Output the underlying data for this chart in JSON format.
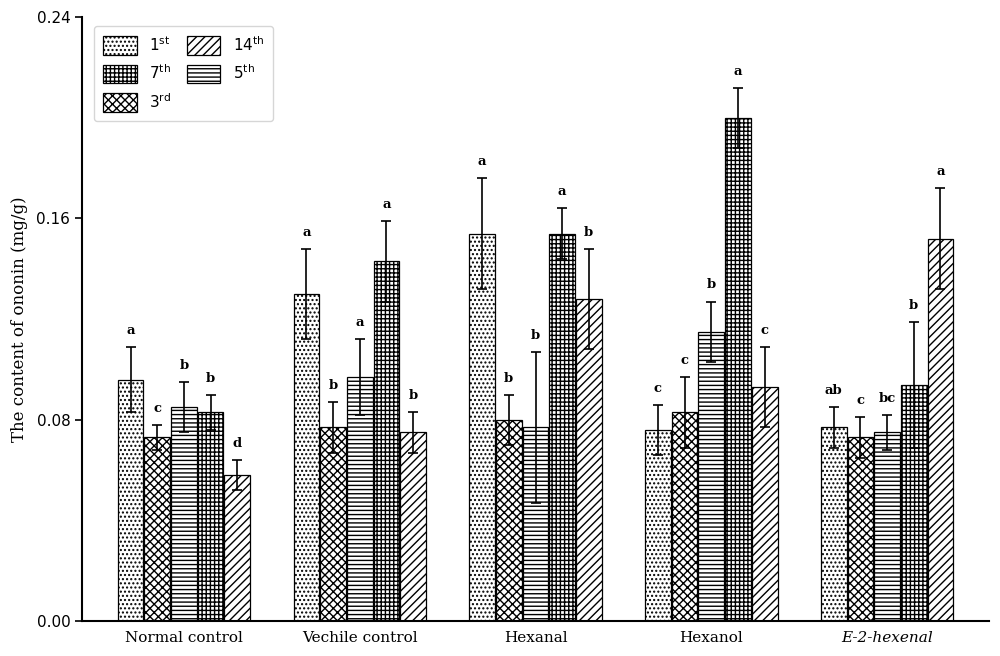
{
  "groups": [
    "Normal control",
    "Vechile control",
    "Hexanal",
    "Hexanol",
    "E-2-hexenal"
  ],
  "series_labels": [
    "1st",
    "3rd",
    "5th",
    "7th",
    "14th"
  ],
  "values": [
    [
      0.096,
      0.073,
      0.085,
      0.083,
      0.058
    ],
    [
      0.13,
      0.077,
      0.097,
      0.143,
      0.075
    ],
    [
      0.154,
      0.08,
      0.077,
      0.154,
      0.128
    ],
    [
      0.076,
      0.083,
      0.115,
      0.2,
      0.093
    ],
    [
      0.077,
      0.073,
      0.075,
      0.094,
      0.152
    ]
  ],
  "errors": [
    [
      0.013,
      0.005,
      0.01,
      0.007,
      0.006
    ],
    [
      0.018,
      0.01,
      0.015,
      0.016,
      0.008
    ],
    [
      0.022,
      0.01,
      0.03,
      0.01,
      0.02
    ],
    [
      0.01,
      0.014,
      0.012,
      0.012,
      0.016
    ],
    [
      0.008,
      0.008,
      0.007,
      0.025,
      0.02
    ]
  ],
  "letters": [
    [
      "a",
      "c",
      "b",
      "b",
      "d"
    ],
    [
      "a",
      "b",
      "a",
      "a",
      "b"
    ],
    [
      "a",
      "b",
      "b",
      "a",
      "b"
    ],
    [
      "c",
      "c",
      "b",
      "a",
      "c"
    ],
    [
      "ab",
      "c",
      "bc",
      "b",
      "a"
    ]
  ],
  "ylabel": "The content of ononin (mg/g)",
  "ylim": [
    0.0,
    0.24
  ],
  "yticks": [
    0.0,
    0.08,
    0.16,
    0.24
  ]
}
